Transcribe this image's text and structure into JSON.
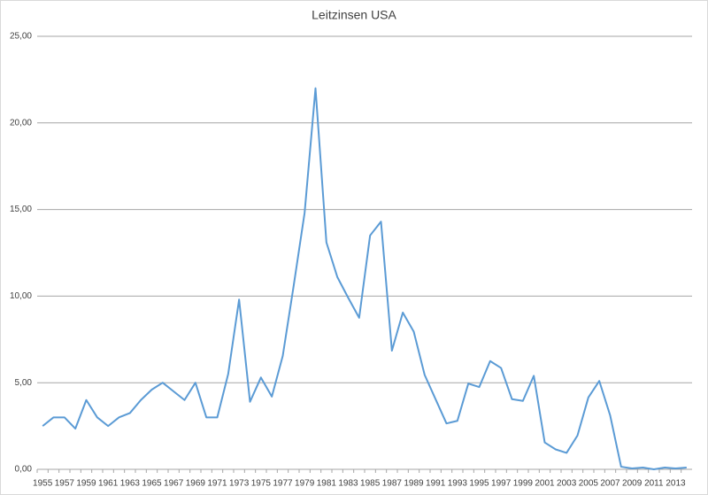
{
  "chart_data": {
    "type": "line",
    "title": "Leitzinsen USA",
    "categories": [
      "1955",
      null,
      "1957",
      null,
      "1959",
      null,
      "1961",
      null,
      "1963",
      null,
      "1965",
      null,
      "1967",
      null,
      "1969",
      null,
      "1971",
      null,
      "1973",
      null,
      "1975",
      null,
      "1977",
      null,
      "1979",
      null,
      "1981",
      null,
      "1983",
      null,
      "1985",
      null,
      "1987",
      null,
      "1989",
      null,
      "1991",
      null,
      "1993",
      null,
      "1995",
      null,
      "1997",
      null,
      "1999",
      null,
      "2001",
      null,
      "2003",
      null,
      "2005",
      null,
      "2007",
      null,
      "2009",
      null,
      "2011",
      null,
      "2013",
      null
    ],
    "series": [
      {
        "name": "Leitzinsen USA",
        "color": "#5b9bd5",
        "values": [
          2.5,
          3.0,
          3.0,
          2.35,
          4.0,
          3.0,
          2.5,
          3.0,
          3.25,
          4.0,
          4.6,
          5.0,
          4.5,
          4.0,
          5.0,
          3.0,
          3.0,
          5.5,
          9.8,
          3.9,
          5.3,
          4.2,
          6.55,
          10.6,
          14.8,
          22.0,
          13.1,
          11.1,
          9.9,
          8.75,
          13.5,
          14.3,
          6.85,
          9.05,
          7.95,
          5.45,
          4.05,
          2.65,
          2.8,
          4.95,
          4.75,
          6.25,
          5.85,
          4.05,
          3.95,
          5.4,
          1.55,
          1.15,
          0.95,
          1.95,
          4.15,
          5.1,
          3.1,
          0.15,
          0.05,
          0.1,
          0.0,
          0.1,
          0.05,
          0.1
        ]
      }
    ],
    "ylim": [
      0,
      25
    ],
    "yticks": [
      {
        "value": 0,
        "label": "0,00"
      },
      {
        "value": 5,
        "label": "5,00"
      },
      {
        "value": 10,
        "label": "10,00"
      },
      {
        "value": 15,
        "label": "15,00"
      },
      {
        "value": 20,
        "label": "20,00"
      },
      {
        "value": 25,
        "label": "25,00"
      }
    ],
    "grid": true
  }
}
